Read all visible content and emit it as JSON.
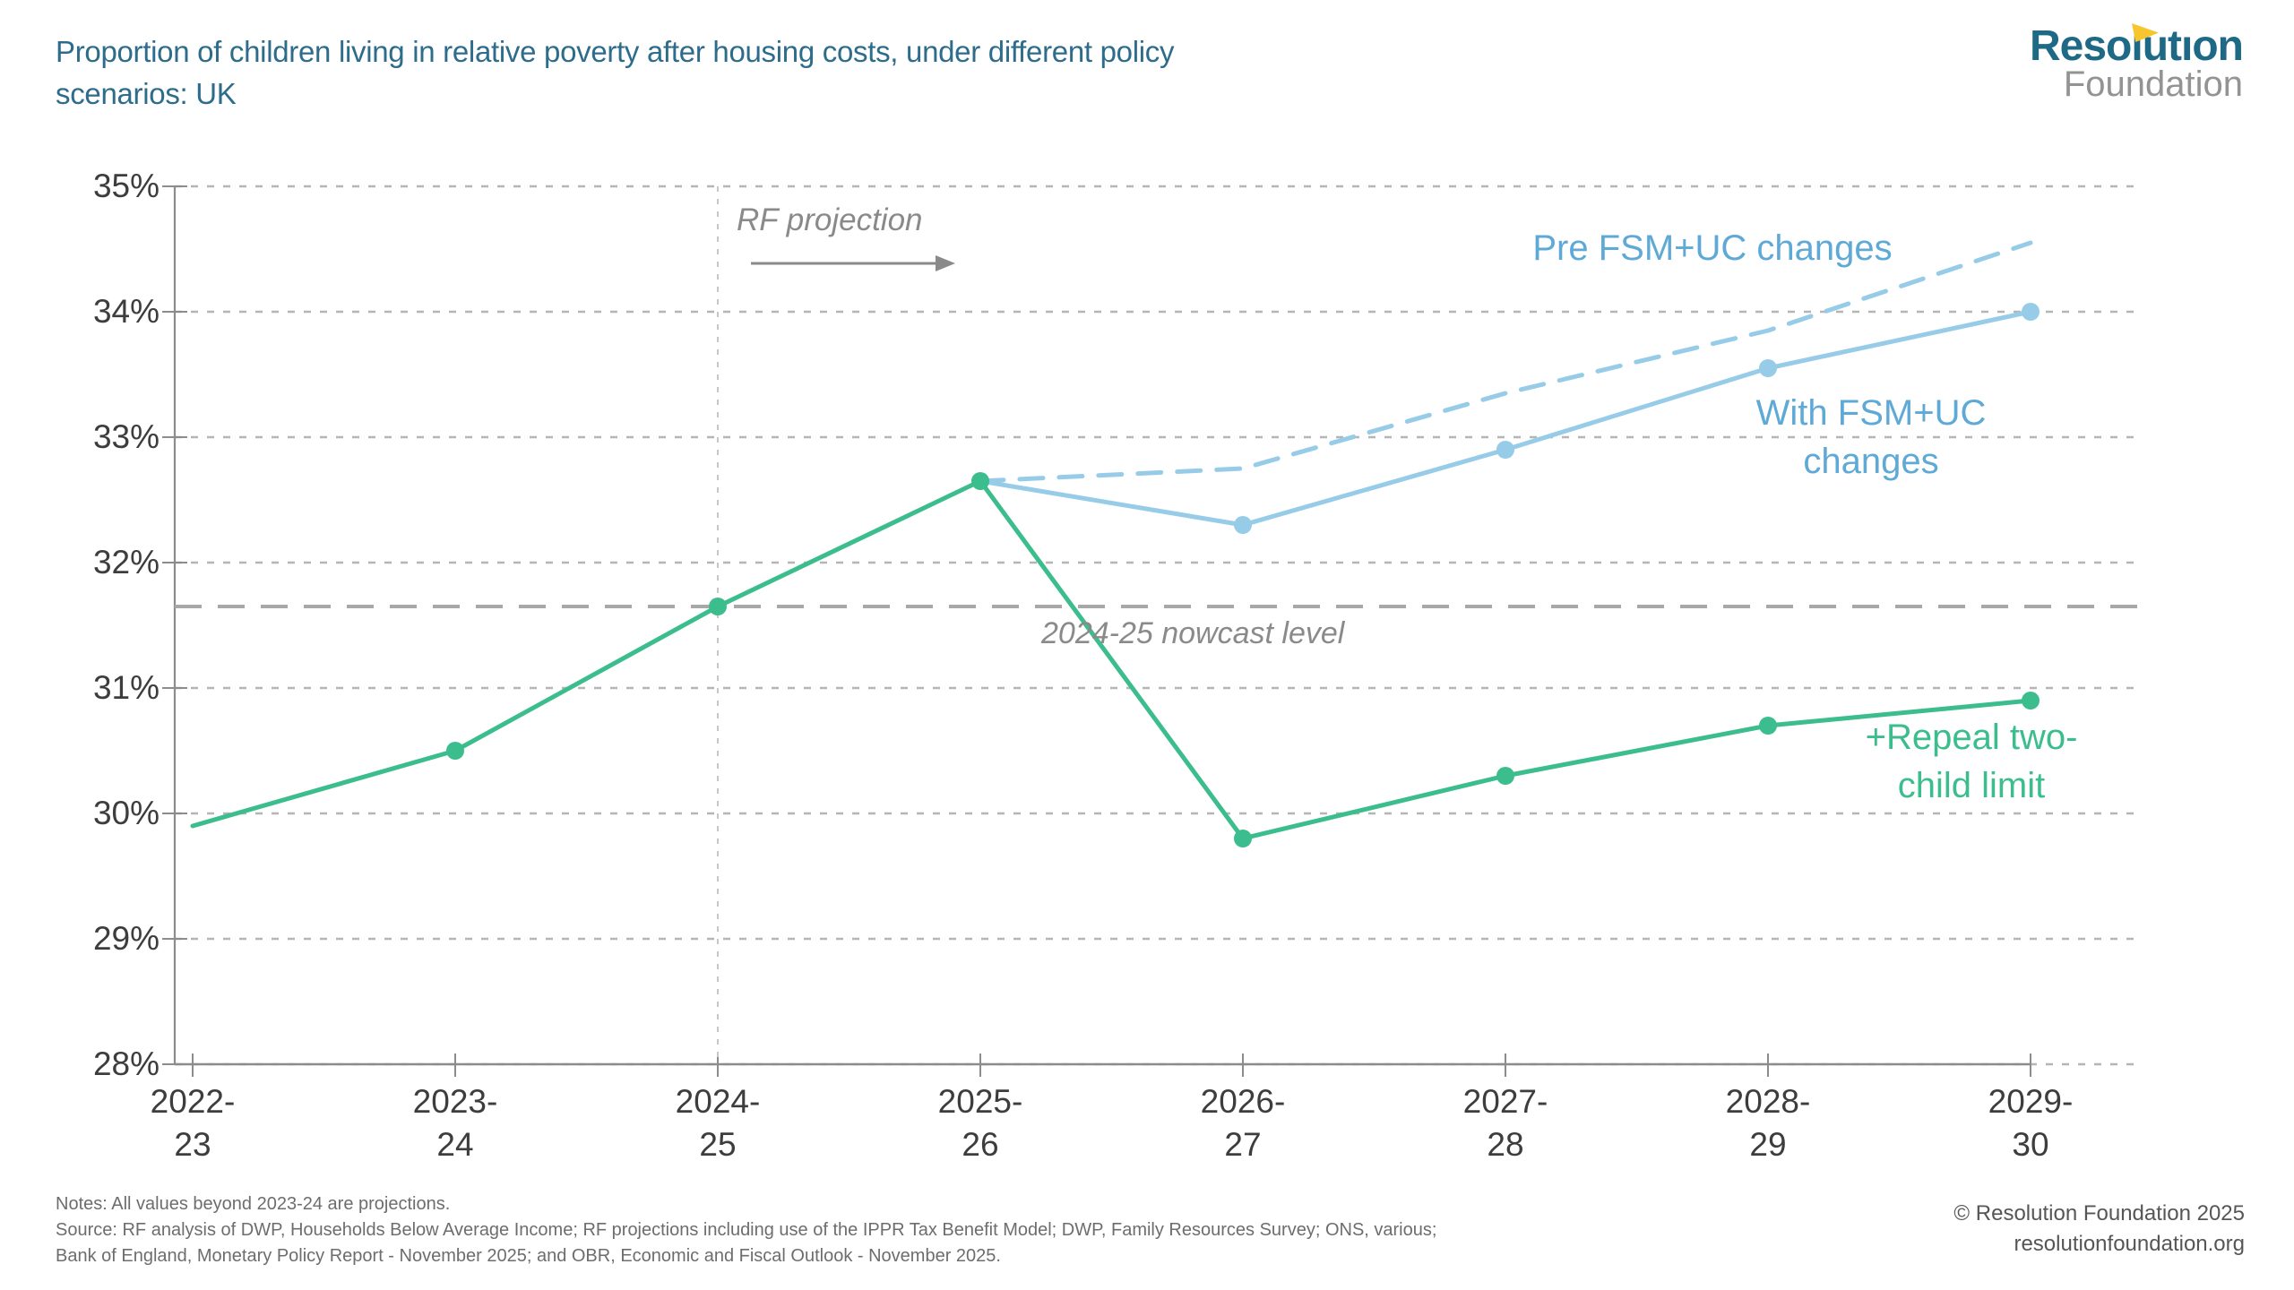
{
  "header": {
    "title_line1": "Proportion of children living in relative poverty after housing costs, under different policy",
    "title_line2": "scenarios: UK",
    "logo": {
      "wordmark": "Resolutıon",
      "subtext": "Foundation"
    }
  },
  "chart_data": {
    "type": "line",
    "title": "Proportion of children living in relative poverty after housing costs, under different policy scenarios: UK",
    "categories": [
      "2022-23",
      "2023-24",
      "2024-25",
      "2025-26",
      "2026-27",
      "2027-28",
      "2028-29",
      "2029-30"
    ],
    "ylim": [
      28,
      35
    ],
    "y_tick_labels": [
      "35%",
      "34%",
      "33%",
      "32%",
      "31%",
      "30%",
      "29%",
      "28%"
    ],
    "grid": "horizontal-dotted",
    "legend_position": "inline-labels",
    "series": [
      {
        "name": "Pre FSM+UC changes",
        "style": "dashed",
        "markers": false,
        "color": "#97cce8",
        "values": [
          null,
          null,
          null,
          32.65,
          32.75,
          33.35,
          33.85,
          34.55
        ]
      },
      {
        "name": "With FSM+UC changes",
        "style": "solid",
        "markers": true,
        "color": "#97cce8",
        "values": [
          null,
          null,
          null,
          32.65,
          32.3,
          32.9,
          33.55,
          34.0
        ]
      },
      {
        "name": "+Repeal two-child limit",
        "style": "solid",
        "markers": true,
        "color": "#3cbd8e",
        "values": [
          29.9,
          30.5,
          31.65,
          32.65,
          29.8,
          30.3,
          30.7,
          30.9
        ]
      }
    ],
    "reference_line": {
      "label": "2024-25 nowcast level",
      "value": 31.65
    },
    "projection_divider": {
      "label": "RF projection",
      "at_category": "2024-25"
    }
  },
  "annotations": {
    "rf_projection": "RF projection",
    "nowcast": "2024-25 nowcast level",
    "pre_fsm": "Pre FSM+UC changes",
    "with_fsm_line1": "With FSM+UC",
    "with_fsm_line2": "changes",
    "repeal_line1": "+Repeal two-",
    "repeal_line2": "child limit"
  },
  "footer": {
    "notes": "Notes: All values beyond 2023-24 are projections.",
    "source_line1": "Source: RF analysis of DWP, Households Below Average Income; RF projections including use of the IPPR Tax Benefit Model; DWP, Family Resources Survey; ONS, various;",
    "source_line2": "Bank of England, Monetary Policy Report - November 2025; and OBR, Economic and Fiscal Outlook - November 2025.",
    "copyright": "© Resolution Foundation 2025",
    "website": "resolutionfoundation.org"
  },
  "colors": {
    "title": "#2d6c8b",
    "gridline": "#b5b5b5",
    "axis": "#8c8c8c",
    "tick_label": "#3d3d3d",
    "gray_annotation": "#8a8a8a",
    "nowcast_line": "#a8a8a8",
    "green": "#3cbd8e",
    "blue_line": "#97cce8",
    "blue_label": "#5fa9d6",
    "logo_teal": "#1e6a86",
    "logo_gray": "#939393",
    "logo_yellow": "#f7c62f"
  }
}
